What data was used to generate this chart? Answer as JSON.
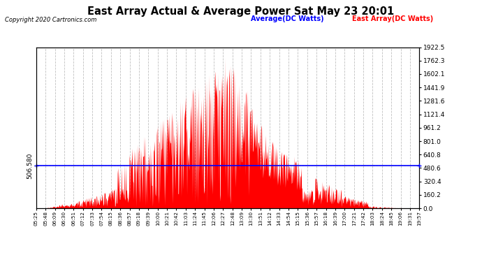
{
  "title": "East Array Actual & Average Power Sat May 23 20:01",
  "copyright": "Copyright 2020 Cartronics.com",
  "average_value": 506.58,
  "average_label": "506.580",
  "ymax": 1922.5,
  "ymin": 0.0,
  "yticks_right": [
    0.0,
    160.2,
    320.4,
    480.6,
    640.8,
    801.0,
    961.2,
    1121.4,
    1281.6,
    1441.9,
    1602.1,
    1762.3,
    1922.5
  ],
  "legend_average": "Average(DC Watts)",
  "legend_east": "East Array(DC Watts)",
  "avg_color": "#0000ff",
  "east_color": "#ff0000",
  "bg_color": "#ffffff",
  "grid_color": "#c0c0c0",
  "title_color": "#000000",
  "copyright_color": "#000000",
  "xtick_labels": [
    "05:25",
    "05:48",
    "06:09",
    "06:30",
    "06:51",
    "07:12",
    "07:33",
    "07:54",
    "08:15",
    "08:36",
    "08:57",
    "09:18",
    "09:39",
    "10:00",
    "10:21",
    "10:42",
    "11:03",
    "11:24",
    "11:45",
    "12:06",
    "12:27",
    "12:48",
    "13:09",
    "13:30",
    "13:51",
    "14:12",
    "14:33",
    "14:54",
    "15:15",
    "15:36",
    "15:57",
    "16:18",
    "16:39",
    "17:00",
    "17:21",
    "17:42",
    "18:03",
    "18:24",
    "18:45",
    "19:06",
    "19:31",
    "19:57"
  ]
}
